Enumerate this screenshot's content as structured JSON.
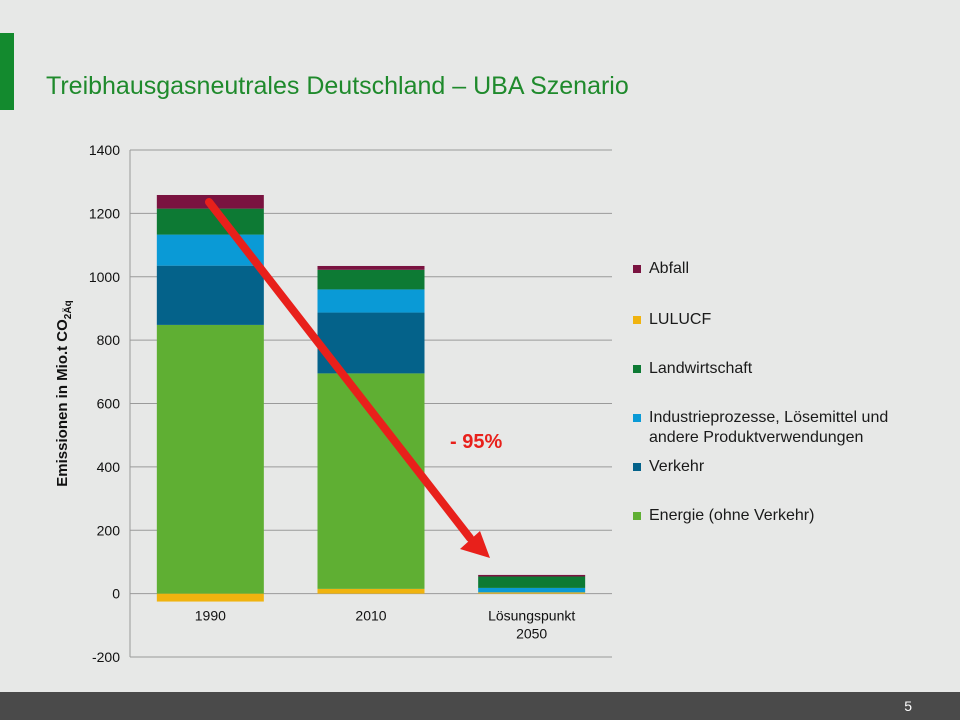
{
  "slide": {
    "title": "Treibhausgasneutrales Deutschland – UBA Szenario",
    "page_number": "5"
  },
  "colors": {
    "title": "#1f8a2c",
    "accent": "#138a2e",
    "arrow": "#e8201b"
  },
  "chart_data": {
    "type": "bar",
    "stacked": true,
    "categories": [
      "1990",
      "2010",
      "Lösungspunkt 2050"
    ],
    "category_lines": [
      [
        "1990"
      ],
      [
        "2010"
      ],
      [
        "Lösungspunkt",
        "2050"
      ]
    ],
    "ylabel_main": "Emissionen in Mio.t CO",
    "ylabel_sub": "2Äq",
    "ylim": [
      -200,
      1400
    ],
    "yticks": [
      -200,
      0,
      200,
      400,
      600,
      800,
      1000,
      1200,
      1400
    ],
    "grid": true,
    "legend_position": "right",
    "series": [
      {
        "name": "Energie (ohne Verkehr)",
        "color": "#5faf33",
        "values": [
          848,
          680,
          0
        ]
      },
      {
        "name": "Verkehr",
        "color": "#04628a",
        "values": [
          187,
          192,
          0
        ]
      },
      {
        "name": "Industrieprozesse, Lösemittel und andere Produktverwendungen",
        "color": "#0a9ad6",
        "values": [
          98,
          73,
          14
        ]
      },
      {
        "name": "Landwirtschaft",
        "color": "#0d7a34",
        "values": [
          82,
          62,
          36
        ]
      },
      {
        "name": "LULUCF",
        "color": "#f0b30f",
        "values": [
          -25,
          15,
          4
        ]
      },
      {
        "name": "Abfall",
        "color": "#7a1340",
        "values": [
          43,
          12,
          5
        ]
      }
    ],
    "annotation": {
      "text": "- 95%",
      "color": "#e8201b"
    }
  }
}
